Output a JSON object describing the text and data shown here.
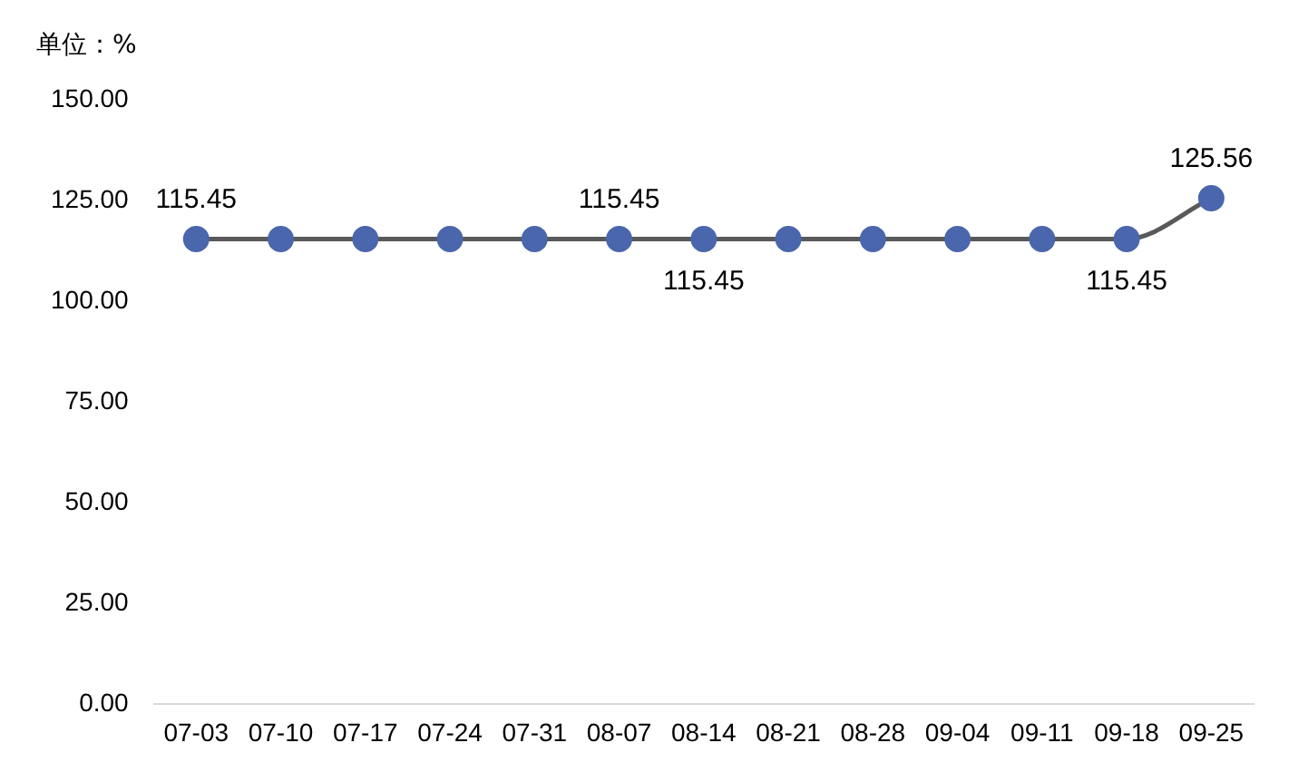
{
  "chart_data": {
    "type": "line",
    "ylabel": "单位：%",
    "categories": [
      "07-03",
      "07-10",
      "07-17",
      "07-24",
      "07-31",
      "08-07",
      "08-14",
      "08-21",
      "08-28",
      "09-04",
      "09-11",
      "09-18",
      "09-25"
    ],
    "series": [
      {
        "color": "#4a66ac",
        "values": [
          115.45,
          115.45,
          115.45,
          115.45,
          115.45,
          115.45,
          115.45,
          115.45,
          115.45,
          115.45,
          115.45,
          115.45,
          125.56
        ],
        "value_labels": [
          "115.45",
          null,
          null,
          null,
          null,
          "115.45",
          "115.45",
          null,
          null,
          null,
          null,
          "115.45",
          "125.56"
        ]
      }
    ],
    "ylim": [
      0,
      150
    ],
    "yticks": [
      {
        "value": 0,
        "label": "0.00"
      },
      {
        "value": 25,
        "label": "25.00"
      },
      {
        "value": 50,
        "label": "50.00"
      },
      {
        "value": 75,
        "label": "75.00"
      },
      {
        "value": 100,
        "label": "100.00"
      },
      {
        "value": 125,
        "label": "125.00"
      },
      {
        "value": 150,
        "label": "150.00"
      }
    ],
    "grid": false,
    "legend": false,
    "marker": "circle",
    "line_style": "solid"
  }
}
